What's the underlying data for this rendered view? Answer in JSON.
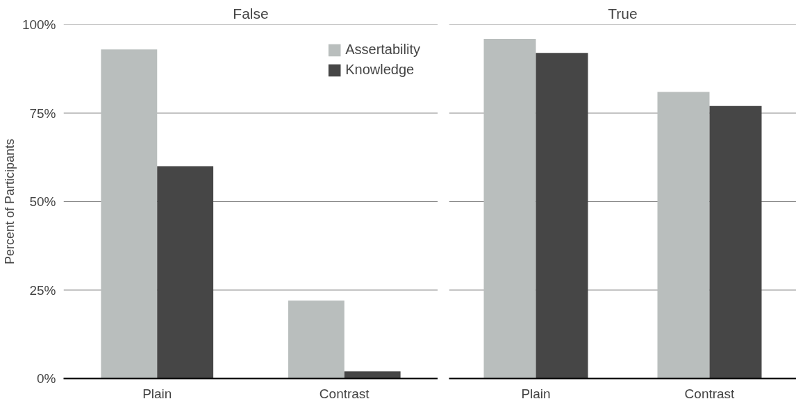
{
  "chart_data": [
    {
      "type": "bar",
      "title": "False",
      "ylabel": "Percent of Participants",
      "categories": [
        "Plain",
        "Contrast"
      ],
      "series": [
        {
          "name": "Assertability",
          "color": "#b9bebd",
          "values": [
            93,
            22
          ]
        },
        {
          "name": "Knowledge",
          "color": "#464646",
          "values": [
            60,
            2
          ]
        }
      ],
      "ylim": [
        0,
        100
      ],
      "yticks": [
        {
          "value": 0,
          "label": "0%"
        },
        {
          "value": 25,
          "label": "25%"
        },
        {
          "value": 50,
          "label": "50%"
        },
        {
          "value": 75,
          "label": "75%"
        },
        {
          "value": 100,
          "label": "100%"
        }
      ],
      "grid": "y",
      "legend": "top right"
    },
    {
      "type": "bar",
      "title": "True",
      "categories": [
        "Plain",
        "Contrast"
      ],
      "series": [
        {
          "color": "#b9bebd",
          "values": [
            96,
            81
          ]
        },
        {
          "color": "#464646",
          "values": [
            92,
            77
          ]
        }
      ],
      "ylim": [
        0,
        100
      ],
      "yticks": [
        {
          "value": 0,
          "label": null
        },
        {
          "value": 25,
          "label": null
        },
        {
          "value": 50,
          "label": null
        },
        {
          "value": 75,
          "label": null
        },
        {
          "value": 100,
          "label": null
        }
      ],
      "grid": "y",
      "tick_labels": "x"
    }
  ]
}
